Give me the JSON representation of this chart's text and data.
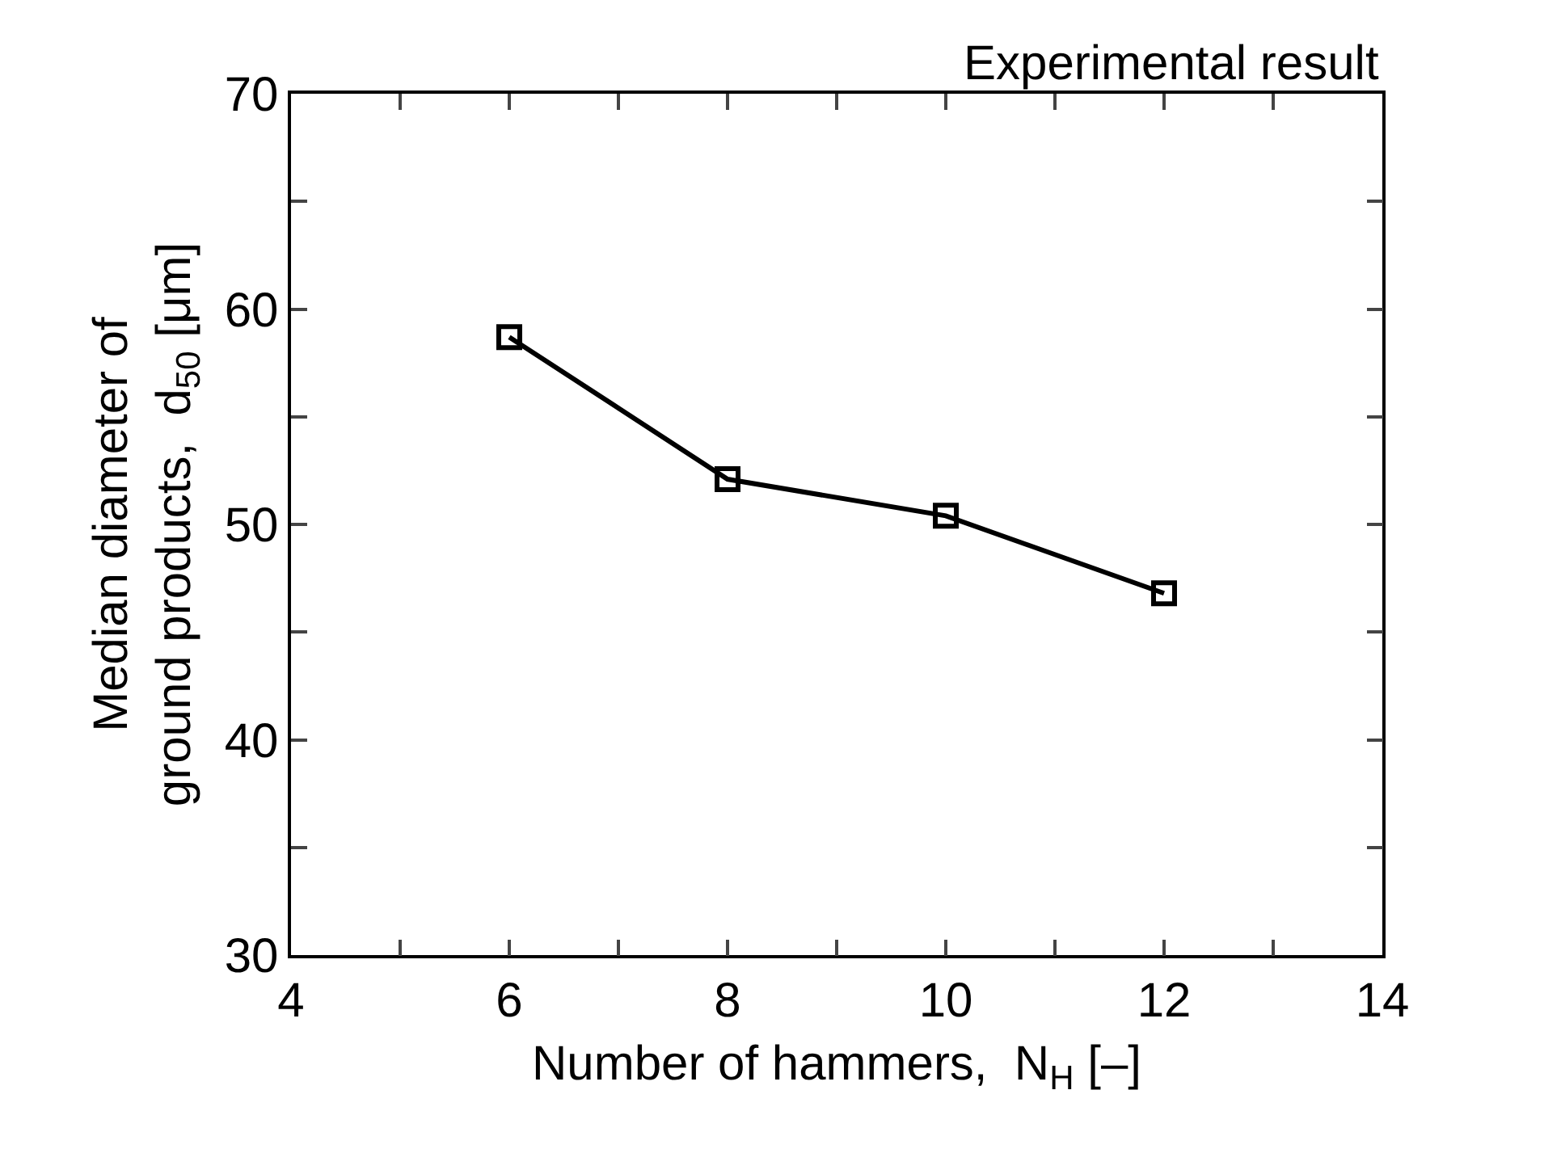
{
  "chart_data": {
    "type": "line",
    "xlabel": "Number of hammers,  N$_{H}$ [–]",
    "ylabel": "Median diameter of\nground products,  d$_{50}$ [μm]",
    "annotations": [
      "Experimental result"
    ],
    "x": [
      6,
      8,
      10,
      12
    ],
    "series": [
      {
        "color": "#000000",
        "values": [
          58.7,
          52.1,
          50.4,
          46.8
        ]
      }
    ],
    "xlim": [
      4,
      14
    ],
    "xticks": [
      4,
      {
        "value": 5,
        "label": null
      },
      6,
      {
        "value": 7,
        "label": null
      },
      8,
      {
        "value": 9,
        "label": null
      },
      10,
      {
        "value": 11,
        "label": null
      },
      12,
      {
        "value": 13,
        "label": null
      },
      14
    ],
    "ylim": [
      30,
      70
    ],
    "yticks": [
      30,
      {
        "value": 35,
        "label": null
      },
      40,
      {
        "value": 45,
        "label": null
      },
      50,
      {
        "value": 55,
        "label": null
      },
      60,
      {
        "value": 65,
        "label": null
      },
      70
    ],
    "marker": "square",
    "line_style": "solid",
    "grid": false
  }
}
